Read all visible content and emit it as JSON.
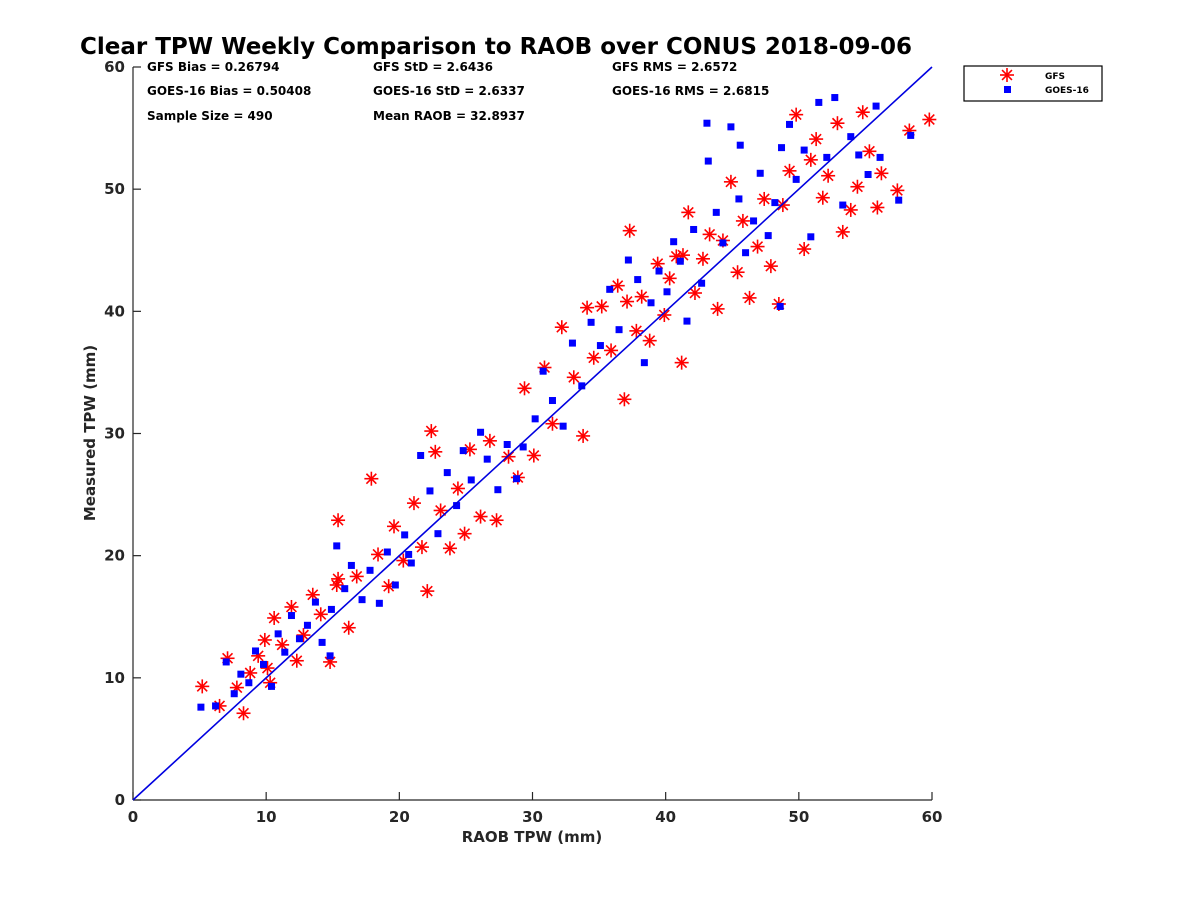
{
  "chart_data": {
    "type": "scatter",
    "title": "Clear TPW Weekly Comparison to RAOB over CONUS 2018-09-06",
    "xlabel": "RAOB TPW (mm)",
    "ylabel": "Measured TPW (mm)",
    "xlim": [
      0,
      60
    ],
    "ylim": [
      0,
      60
    ],
    "xticks": [
      0,
      10,
      20,
      30,
      40,
      50,
      60
    ],
    "yticks": [
      0,
      10,
      20,
      30,
      40,
      50,
      60
    ],
    "legend_position": "outside top-right",
    "reference_line": {
      "x": [
        0,
        60
      ],
      "y": [
        0,
        60
      ],
      "color": "#0000e0"
    },
    "stats": {
      "gfs_bias": "GFS Bias = 0.26794",
      "goes_bias": "GOES-16 Bias = 0.50408",
      "sample_size": "Sample Size = 490",
      "gfs_std": "GFS StD = 2.6436",
      "goes_std": "GOES-16 StD = 2.6337",
      "mean_raob": "Mean RAOB = 32.8937",
      "gfs_rms": "GFS RMS = 2.6572",
      "goes_rms": "GOES-16 RMS = 2.6815"
    },
    "series": [
      {
        "name": "GFS",
        "marker": "asterisk",
        "color": "#ff0000",
        "x": [
          5.2,
          6.5,
          7.1,
          7.8,
          8.3,
          8.8,
          9.4,
          9.9,
          10.3,
          10.6,
          11.2,
          11.9,
          12.3,
          12.8,
          13.5,
          14.1,
          14.8,
          15.3,
          15.4,
          16.2,
          16.8,
          17.9,
          18.4,
          19.2,
          19.6,
          20.3,
          21.1,
          21.7,
          22.1,
          22.4,
          22.7,
          23.1,
          23.8,
          24.4,
          24.9,
          25.3,
          26.1,
          26.8,
          27.3,
          28.2,
          28.9,
          29.4,
          30.1,
          30.9,
          31.5,
          32.2,
          33.1,
          33.8,
          34.1,
          34.6,
          35.2,
          35.9,
          36.4,
          36.9,
          37.3,
          37.8,
          38.2,
          38.8,
          39.4,
          39.9,
          40.3,
          40.8,
          41.2,
          41.7,
          42.2,
          42.8,
          43.3,
          43.9,
          44.3,
          44.9,
          45.4,
          45.8,
          46.3,
          46.9,
          47.4,
          47.9,
          48.5,
          48.8,
          49.3,
          49.8,
          50.4,
          50.9,
          51.3,
          51.8,
          52.2,
          52.9,
          53.3,
          53.9,
          54.4,
          54.8,
          55.3,
          55.9,
          56.2,
          57.4,
          58.3,
          59.8,
          41.3,
          37.1,
          15.4,
          10.1
        ],
        "y": [
          9.3,
          7.7,
          11.6,
          9.2,
          7.1,
          10.4,
          11.8,
          13.1,
          9.6,
          14.9,
          12.7,
          15.8,
          11.4,
          13.5,
          16.8,
          15.2,
          11.3,
          17.6,
          22.9,
          14.1,
          18.3,
          26.3,
          20.1,
          17.5,
          22.4,
          19.6,
          24.3,
          20.7,
          17.1,
          30.2,
          28.5,
          23.7,
          20.6,
          25.5,
          21.8,
          28.7,
          23.2,
          29.4,
          22.9,
          28.1,
          26.4,
          33.7,
          28.2,
          35.4,
          30.8,
          38.7,
          34.6,
          29.8,
          40.3,
          36.2,
          40.4,
          36.8,
          42.1,
          32.8,
          46.6,
          38.4,
          41.2,
          37.6,
          43.9,
          39.7,
          42.7,
          44.5,
          35.8,
          48.1,
          41.5,
          44.3,
          46.3,
          40.2,
          45.8,
          50.6,
          43.2,
          47.4,
          41.1,
          45.3,
          49.2,
          43.7,
          40.6,
          48.7,
          51.5,
          56.1,
          45.1,
          52.4,
          54.1,
          49.3,
          51.1,
          55.4,
          46.5,
          48.3,
          50.2,
          56.3,
          53.1,
          48.5,
          51.3,
          49.9,
          54.8,
          55.7,
          44.6,
          40.8,
          18.1,
          10.8
        ]
      },
      {
        "name": "GOES-16",
        "marker": "square",
        "color": "#0000ff",
        "x": [
          5.1,
          6.2,
          7.0,
          7.6,
          8.1,
          8.7,
          9.2,
          9.8,
          10.4,
          10.9,
          11.4,
          11.9,
          12.5,
          13.1,
          13.7,
          14.2,
          14.9,
          15.3,
          15.9,
          16.4,
          17.2,
          17.8,
          18.5,
          19.1,
          19.7,
          20.4,
          20.9,
          21.6,
          22.3,
          22.9,
          23.6,
          24.3,
          24.8,
          25.4,
          26.1,
          26.6,
          27.4,
          28.1,
          28.8,
          29.3,
          30.2,
          30.8,
          31.5,
          32.3,
          33.0,
          33.7,
          34.4,
          35.1,
          35.8,
          36.5,
          37.2,
          37.9,
          38.4,
          38.9,
          39.5,
          40.1,
          40.6,
          41.1,
          41.6,
          42.1,
          42.7,
          43.2,
          43.8,
          44.3,
          44.9,
          45.5,
          46.0,
          46.6,
          47.1,
          47.7,
          48.2,
          48.7,
          49.3,
          49.8,
          50.4,
          50.9,
          51.5,
          52.1,
          52.7,
          53.3,
          53.9,
          54.5,
          55.2,
          55.8,
          56.1,
          57.5,
          58.4,
          43.1,
          45.6,
          48.6,
          20.7,
          14.8
        ],
        "y": [
          7.6,
          7.7,
          11.3,
          8.7,
          10.3,
          9.6,
          12.2,
          11.1,
          9.3,
          13.6,
          12.1,
          15.1,
          13.2,
          14.3,
          16.2,
          12.9,
          15.6,
          20.8,
          17.3,
          19.2,
          16.4,
          18.8,
          16.1,
          20.3,
          17.6,
          21.7,
          19.4,
          28.2,
          25.3,
          21.8,
          26.8,
          24.1,
          28.6,
          26.2,
          30.1,
          27.9,
          25.4,
          29.1,
          26.3,
          28.9,
          31.2,
          35.1,
          32.7,
          30.6,
          37.4,
          33.9,
          39.1,
          37.2,
          41.8,
          38.5,
          44.2,
          42.6,
          35.8,
          40.7,
          43.3,
          41.6,
          45.7,
          44.1,
          39.2,
          46.7,
          42.3,
          52.3,
          48.1,
          45.6,
          55.1,
          49.2,
          44.8,
          47.4,
          51.3,
          46.2,
          48.9,
          53.4,
          55.3,
          50.8,
          53.2,
          46.1,
          57.1,
          52.6,
          57.5,
          48.7,
          54.3,
          52.8,
          51.2,
          56.8,
          52.6,
          49.1,
          54.4,
          55.4,
          53.6,
          40.4,
          20.1,
          11.8
        ]
      }
    ]
  }
}
